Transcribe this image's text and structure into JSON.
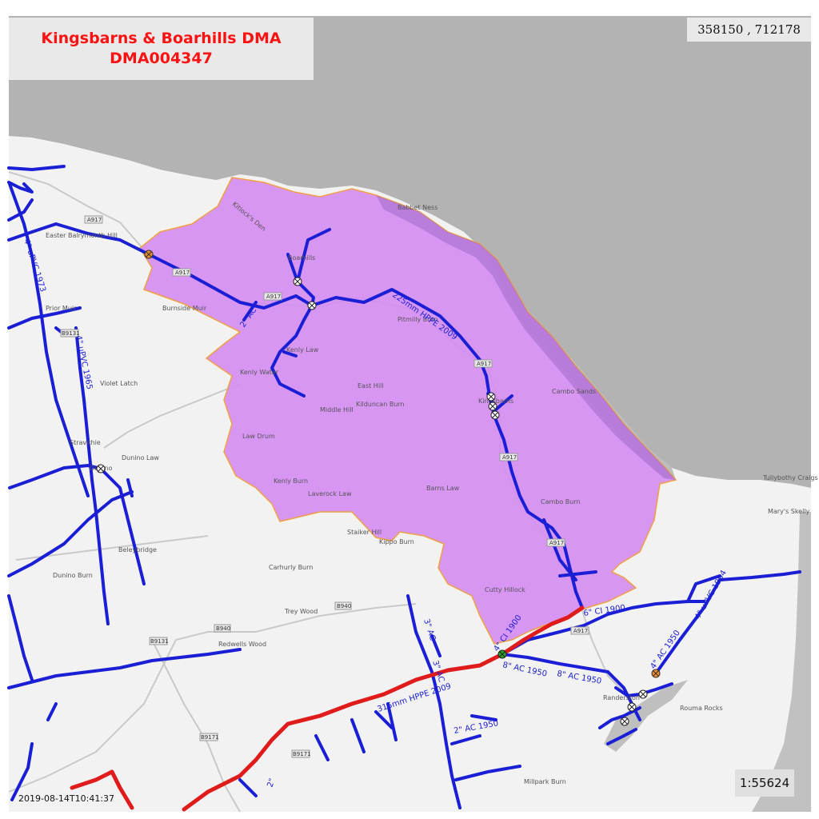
{
  "header": {
    "title_line1": "Kingsbarns & Boarhills DMA",
    "title_line2": "DMA004347",
    "coordinates": "358150 , 712178"
  },
  "footer": {
    "scale": "1:55624",
    "timestamp": "2019-08-14T10:41:37"
  },
  "colors": {
    "sea": "#b3b3b3",
    "land": "#f2f2f2",
    "dma_fill": "#d58cf3",
    "dma_outline": "#f0a040",
    "water_main": "#1a1fd6",
    "trunk_main": "#e01b1b",
    "title_text": "#ff1111"
  },
  "map": {
    "place_labels": [
      "Easter Balrymonth Hill",
      "Prior Muir",
      "Stravithie",
      "Dunino",
      "Dunino Law",
      "Beleybridge",
      "Dunino Burn",
      "Violet Latch",
      "Boarhills",
      "Kenly Water",
      "Kenly Law",
      "Burnside Muir",
      "East Hill",
      "Kilduncan Burn",
      "Middle Hill",
      "Law Drum",
      "Kenly Burn",
      "Laverock Law",
      "Pitmilly Burn",
      "Barns Law",
      "Cambo Burn",
      "Cutty Hillock",
      "Kippo Burn",
      "Staiker Hill",
      "Carhurly Burn",
      "Trey Wood",
      "Redwells Wood",
      "Millpark Burn",
      "Cambo Sands",
      "Babbet Ness",
      "Tullybothy Craigs",
      "Mary's Skelly",
      "Kitlock's Den",
      "Kingsbarns",
      "Randerston",
      "Rouma Rocks"
    ],
    "road_labels": [
      "A917",
      "B9131",
      "B940",
      "B9171"
    ],
    "pipe_labels": [
      "2\" AC",
      "225mm HPPE 2009",
      "4\" uPVC 1973",
      "4\" uPVC 1965",
      "4\" CI 1900",
      "6\" CI 1900",
      "8\" AC 1950",
      "4\" AC 1950",
      "4\" uPVC 1994",
      "3\" AC",
      "315mm HPPE 2009",
      "2\" AC 1950",
      "2\""
    ],
    "valve_icon": "crossed-circle-valve",
    "meter_icon": "green-filled-circle",
    "boundary_icon": "orange-filled-circle"
  }
}
